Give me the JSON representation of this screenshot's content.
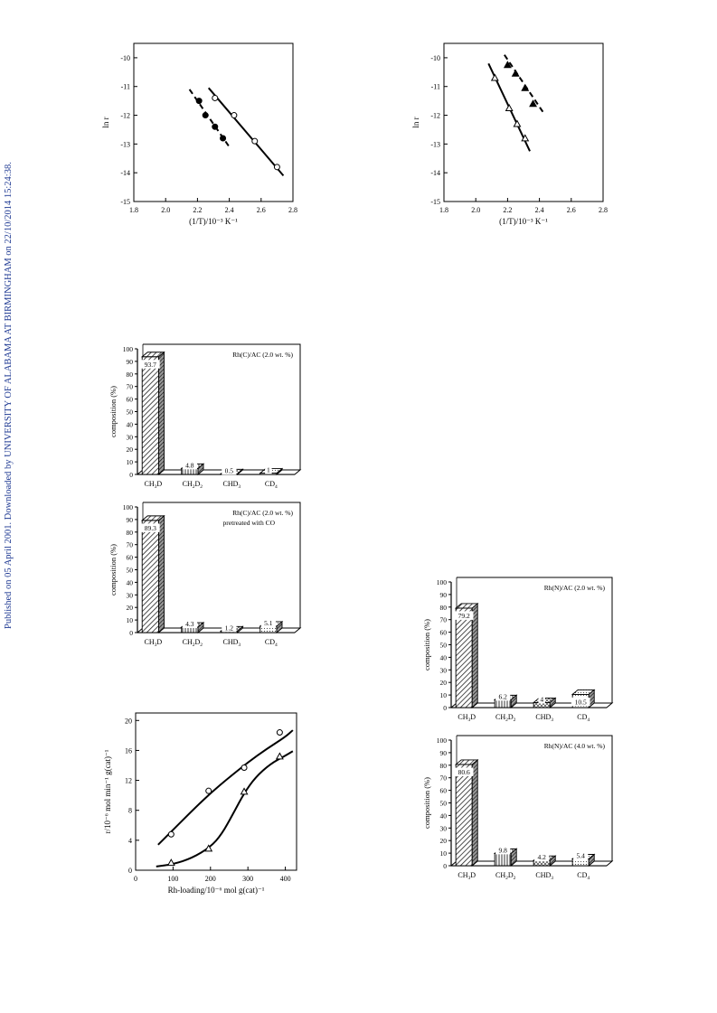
{
  "side_note": "Published on 05 April 2001. Downloaded by UNIVERSITY OF ALABAMA AT BIRMINGHAM on 22/10/2014 15:24:38.",
  "chart_data": [
    {
      "id": "arrhenius-left",
      "type": "scatter",
      "xlabel": "(1/T)/10⁻³ K⁻¹",
      "ylabel": "ln r",
      "xlim": [
        1.8,
        2.8
      ],
      "ylim": [
        -15,
        -9.5
      ],
      "xticks": [
        "1.8",
        "2.0",
        "2.2",
        "2.4",
        "2.6",
        "2.8"
      ],
      "yticks": [
        "-10",
        "-11",
        "-12",
        "-13",
        "-14",
        "-15"
      ],
      "grid": false,
      "series": [
        {
          "marker": "filled-circle",
          "line": "dashed",
          "x": [
            2.21,
            2.25,
            2.31,
            2.36
          ],
          "y": [
            -11.5,
            -12.0,
            -12.4,
            -12.8
          ],
          "fit": [
            [
              2.15,
              -11.1
            ],
            [
              2.4,
              -13.1
            ]
          ]
        },
        {
          "marker": "open-circle",
          "line": "solid",
          "x": [
            2.31,
            2.43,
            2.56,
            2.7
          ],
          "y": [
            -11.4,
            -12.0,
            -12.9,
            -13.8
          ],
          "fit": [
            [
              2.27,
              -11.05
            ],
            [
              2.74,
              -14.1
            ]
          ]
        }
      ]
    },
    {
      "id": "arrhenius-right",
      "type": "scatter",
      "xlabel": "(1/T)/10⁻³ K⁻¹",
      "ylabel": "ln r",
      "xlim": [
        1.8,
        2.8
      ],
      "ylim": [
        -15,
        -9.5
      ],
      "xticks": [
        "1.8",
        "2.0",
        "2.2",
        "2.4",
        "2.6",
        "2.8"
      ],
      "yticks": [
        "-10",
        "-11",
        "-12",
        "-13",
        "-14",
        "-15"
      ],
      "grid": false,
      "series": [
        {
          "marker": "filled-triangle",
          "line": "dashed",
          "x": [
            2.2,
            2.25,
            2.31,
            2.36
          ],
          "y": [
            -10.25,
            -10.55,
            -11.05,
            -11.6
          ],
          "fit": [
            [
              2.18,
              -9.9
            ],
            [
              2.43,
              -11.95
            ]
          ]
        },
        {
          "marker": "open-triangle",
          "line": "solid",
          "x": [
            2.12,
            2.21,
            2.26,
            2.31
          ],
          "y": [
            -10.7,
            -11.75,
            -12.3,
            -12.8
          ],
          "fit": [
            [
              2.08,
              -10.2
            ],
            [
              2.34,
              -13.25
            ]
          ]
        }
      ]
    },
    {
      "id": "composition-rhc-ac",
      "type": "bar",
      "annotation": "Rh(C)/AC (2.0 wt. %)",
      "ylabel": "composition (%)",
      "ylim": [
        0,
        100
      ],
      "yticks": [
        "0",
        "10",
        "20",
        "30",
        "40",
        "50",
        "60",
        "70",
        "80",
        "90",
        "100"
      ],
      "categories": [
        [
          "CH",
          "3",
          "D"
        ],
        [
          "CH",
          "2",
          "D",
          "2"
        ],
        [
          "CHD",
          "3"
        ],
        [
          "CD",
          "4"
        ]
      ],
      "values": [
        93.7,
        4.8,
        0.5,
        1
      ],
      "labels": [
        "93.7",
        "4.8",
        "0.5",
        "1"
      ],
      "patterns": [
        "diag",
        "vert",
        "cross",
        "dots"
      ]
    },
    {
      "id": "composition-rhc-ac-co",
      "type": "bar",
      "annotation": "Rh(C)/AC (2.0 wt. %)",
      "annotation2": "pretreated with CO",
      "ylabel": "composition (%)",
      "ylim": [
        0,
        100
      ],
      "yticks": [
        "0",
        "10",
        "20",
        "30",
        "40",
        "50",
        "60",
        "70",
        "80",
        "90",
        "100"
      ],
      "categories": [
        [
          "CH",
          "3",
          "D"
        ],
        [
          "CH",
          "2",
          "D",
          "2"
        ],
        [
          "CHD",
          "3"
        ],
        [
          "CD",
          "4"
        ]
      ],
      "values": [
        89.3,
        4.3,
        1.2,
        5.1
      ],
      "labels": [
        "89.3",
        "4.3",
        "1.2",
        "5.1"
      ],
      "patterns": [
        "diag",
        "vert",
        "cross",
        "dots"
      ]
    },
    {
      "id": "composition-rhn-ac-2",
      "type": "bar",
      "annotation": "Rh(N)/AC (2.0 wt. %)",
      "ylabel": "composition (%)",
      "ylim": [
        0,
        100
      ],
      "yticks": [
        "0",
        "10",
        "20",
        "30",
        "40",
        "50",
        "60",
        "70",
        "80",
        "90",
        "100"
      ],
      "categories": [
        [
          "CH",
          "3",
          "D"
        ],
        [
          "CH",
          "2",
          "D",
          "2"
        ],
        [
          "CHD",
          "3"
        ],
        [
          "CD",
          "4"
        ]
      ],
      "values": [
        79.2,
        6.2,
        4,
        10.5
      ],
      "labels": [
        "79.2",
        "6.2",
        "4",
        "10.5"
      ],
      "patterns": [
        "diag",
        "vert",
        "cross",
        "dots"
      ]
    },
    {
      "id": "composition-rhn-ac-4",
      "type": "bar",
      "annotation": "Rh(N)/AC (4.0 wt. %)",
      "ylabel": "composition (%)",
      "ylim": [
        0,
        100
      ],
      "yticks": [
        "0",
        "10",
        "20",
        "30",
        "40",
        "50",
        "60",
        "70",
        "80",
        "90",
        "100"
      ],
      "categories": [
        [
          "CH",
          "3",
          "D"
        ],
        [
          "CH",
          "2",
          "D",
          "2"
        ],
        [
          "CHD",
          "3"
        ],
        [
          "CD",
          "4"
        ]
      ],
      "values": [
        80.6,
        9.8,
        4.2,
        5.4
      ],
      "labels": [
        "80.6",
        "9.8",
        "4.2",
        "5.4"
      ],
      "patterns": [
        "diag",
        "vert",
        "cross",
        "dots"
      ]
    },
    {
      "id": "rate-vs-loading",
      "type": "scatter",
      "xlabel": "Rh-loading/10⁻⁶ mol g(cat)⁻¹",
      "ylabel": "r/10⁻⁶ mol min⁻¹ g(cat)⁻¹",
      "xlim": [
        0,
        430
      ],
      "ylim": [
        0,
        21
      ],
      "xticks": [
        "0",
        "100",
        "200",
        "300",
        "400"
      ],
      "yticks": [
        "0",
        "4",
        "8",
        "12",
        "16",
        "20"
      ],
      "grid": false,
      "series": [
        {
          "marker": "open-circle",
          "x": [
            95,
            195,
            290,
            385
          ],
          "y": [
            4.8,
            10.6,
            13.7,
            18.4
          ],
          "curve": [
            [
              60,
              3.4
            ],
            [
              100,
              5.4
            ],
            [
              150,
              7.9
            ],
            [
              200,
              10.3
            ],
            [
              250,
              12.4
            ],
            [
              300,
              14.4
            ],
            [
              350,
              16.2
            ],
            [
              400,
              17.8
            ],
            [
              420,
              18.7
            ]
          ]
        },
        {
          "marker": "open-triangle",
          "x": [
            95,
            195,
            290,
            385
          ],
          "y": [
            1.0,
            2.9,
            10.5,
            15.2
          ],
          "curve": [
            [
              55,
              0.5
            ],
            [
              100,
              0.8
            ],
            [
              150,
              1.6
            ],
            [
              200,
              3.1
            ],
            [
              230,
              4.8
            ],
            [
              260,
              7.5
            ],
            [
              290,
              10.3
            ],
            [
              320,
              12.4
            ],
            [
              360,
              14.2
            ],
            [
              400,
              15.3
            ],
            [
              420,
              15.9
            ]
          ]
        }
      ]
    }
  ]
}
